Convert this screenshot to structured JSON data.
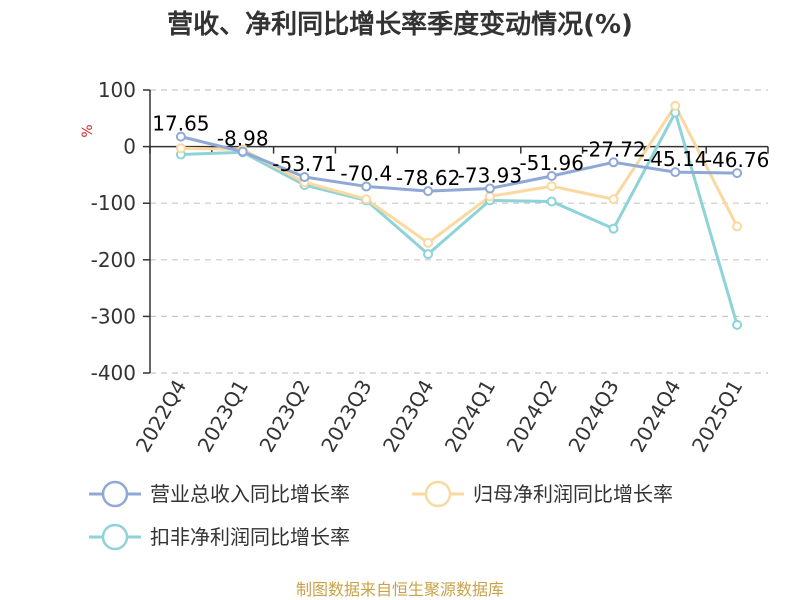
{
  "chart_data": {
    "type": "line",
    "title": "营收、净利同比增长率季度变动情况(%)",
    "ylabel": "%",
    "xlabel": "",
    "categories": [
      "2022Q4",
      "2023Q1",
      "2023Q2",
      "2023Q3",
      "2023Q4",
      "2024Q1",
      "2024Q2",
      "2024Q3",
      "2024Q4",
      "2025Q1"
    ],
    "ylim": [
      -400,
      100
    ],
    "yticks": [
      100,
      0,
      -100,
      -200,
      -300,
      -400
    ],
    "grid": true,
    "legend_position": "bottom",
    "series": [
      {
        "name": "营业总收入同比增长率",
        "color": "#8fa8d6",
        "values": [
          17.65,
          -8.98,
          -53.71,
          -70.4,
          -78.62,
          -73.93,
          -51.96,
          -27.72,
          -45.14,
          -46.76
        ],
        "labels": [
          "17.65",
          "-8.98",
          "-53.71",
          "-70.4",
          "-78.62",
          "-73.93",
          "-51.96",
          "-27.72",
          "-45.14",
          "-46.76"
        ]
      },
      {
        "name": "归母净利润同比增长率",
        "color": "#fad9a1",
        "values": [
          -3,
          -5,
          -63,
          -93,
          -170,
          -88,
          -70,
          -93,
          72,
          -141
        ]
      },
      {
        "name": "扣非净利润同比增长率",
        "color": "#8dd3d8",
        "values": [
          -14,
          -10,
          -68,
          -95,
          -190,
          -95,
          -97,
          -145,
          60,
          -315
        ]
      }
    ]
  },
  "footer": {
    "source": "制图数据来自恒生聚源数据库"
  }
}
